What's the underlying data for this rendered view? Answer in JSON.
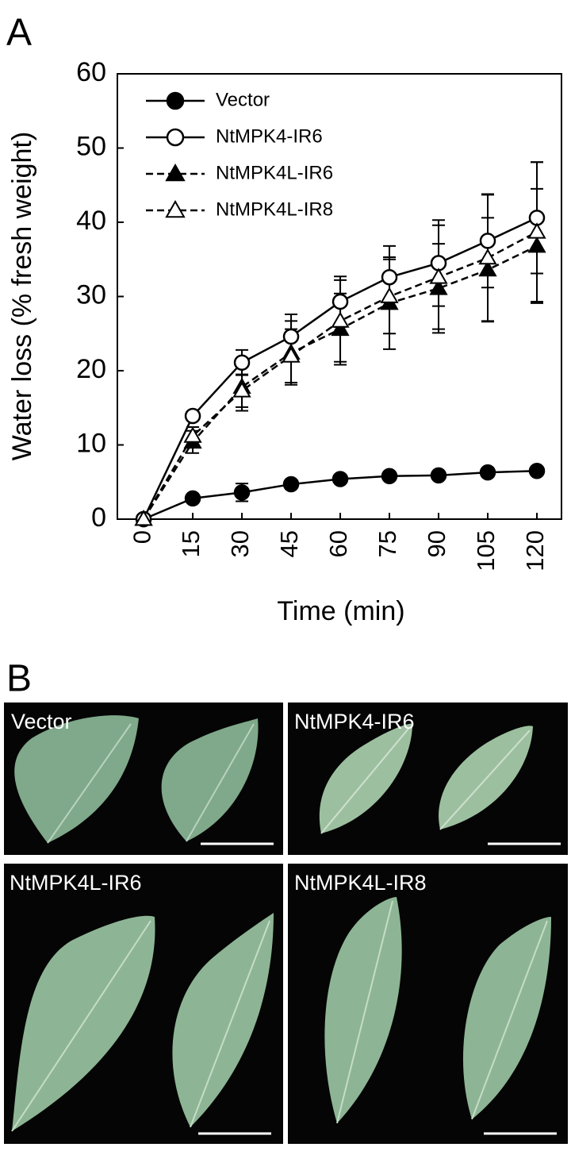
{
  "chart_data": {
    "type": "line",
    "y_label": "Water loss (% fresh weight)",
    "x_label": "Time (min)",
    "x": [
      0,
      15,
      30,
      45,
      60,
      75,
      90,
      105,
      120
    ],
    "xlim": [
      -8,
      127.5
    ],
    "xticks": [
      0,
      15,
      30,
      45,
      60,
      75,
      90,
      105,
      120
    ],
    "ylim": [
      0,
      60
    ],
    "yticks": [
      0,
      10,
      20,
      30,
      40,
      50,
      60
    ],
    "series": [
      {
        "name": "Vector",
        "color": "#000000",
        "marker": "circle",
        "filled": true,
        "dashed": false,
        "values": [
          0,
          2.8,
          3.6,
          4.7,
          5.4,
          5.8,
          5.9,
          6.3,
          6.5
        ],
        "errors": [
          null,
          0.3,
          1.2,
          0.6,
          0.4,
          0.4,
          0.3,
          0.4,
          0.3
        ]
      },
      {
        "name": "NtMPK4-IR6",
        "color": "#000000",
        "marker": "circle",
        "filled": false,
        "dashed": false,
        "values": [
          0,
          13.9,
          21.1,
          24.6,
          29.3,
          32.6,
          34.5,
          37.5,
          40.6
        ],
        "errors": [
          null,
          0.6,
          1.7,
          3.0,
          3.4,
          4.2,
          5.8,
          6.3,
          7.5
        ]
      },
      {
        "name": "NtMPK4L-IR6",
        "color": "#000000",
        "marker": "triangle",
        "filled": true,
        "dashed": true,
        "values": [
          0,
          10.4,
          17.8,
          22.4,
          25.6,
          29.1,
          31.1,
          33.6,
          36.8
        ],
        "errors": [
          null,
          1.5,
          3.2,
          4.3,
          4.8,
          6.2,
          6.0,
          7.0,
          7.7
        ]
      },
      {
        "name": "NtMPK4L-IR8",
        "color": "#000000",
        "marker": "triangle",
        "filled": false,
        "dashed": true,
        "values": [
          0,
          11.2,
          17.3,
          22.0,
          26.7,
          30.0,
          32.6,
          35.2,
          38.7
        ],
        "errors": [
          null,
          1.2,
          2.2,
          3.6,
          5.5,
          5.0,
          7.0,
          8.5,
          9.4
        ]
      }
    ]
  },
  "figure": {
    "panel_a": "A",
    "panel_b": "B",
    "photos": [
      {
        "label": "Vector"
      },
      {
        "label": "NtMPK4-IR6"
      },
      {
        "label": "NtMPK4L-IR6"
      },
      {
        "label": "NtMPK4L-IR8"
      }
    ]
  }
}
